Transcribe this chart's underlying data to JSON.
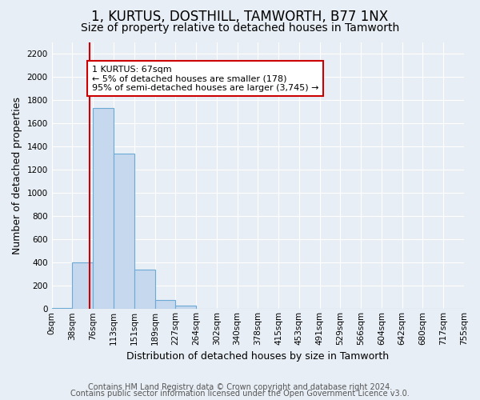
{
  "title": "1, KURTUS, DOSTHILL, TAMWORTH, B77 1NX",
  "subtitle": "Size of property relative to detached houses in Tamworth",
  "xlabel": "Distribution of detached houses by size in Tamworth",
  "ylabel": "Number of detached properties",
  "footer_line1": "Contains HM Land Registry data © Crown copyright and database right 2024.",
  "footer_line2": "Contains public sector information licensed under the Open Government Licence v3.0.",
  "bin_labels": [
    "0sqm",
    "38sqm",
    "76sqm",
    "113sqm",
    "151sqm",
    "189sqm",
    "227sqm",
    "264sqm",
    "302sqm",
    "340sqm",
    "378sqm",
    "415sqm",
    "453sqm",
    "491sqm",
    "529sqm",
    "566sqm",
    "604sqm",
    "642sqm",
    "680sqm",
    "717sqm",
    "755sqm"
  ],
  "bar_values": [
    10,
    400,
    1730,
    1340,
    340,
    75,
    30,
    5,
    0,
    0,
    0,
    0,
    0,
    0,
    0,
    0,
    0,
    0,
    0,
    0
  ],
  "bar_color": "#c5d8ee",
  "bar_edge_color": "#6aaad4",
  "vline_x_index": 1.85,
  "vline_color": "#cc0000",
  "annotation_text": "1 KURTUS: 67sqm\n← 5% of detached houses are smaller (178)\n95% of semi-detached houses are larger (3,745) →",
  "annotation_box_color": "#ffffff",
  "annotation_box_edge_color": "#cc0000",
  "ylim": [
    0,
    2300
  ],
  "yticks": [
    0,
    200,
    400,
    600,
    800,
    1000,
    1200,
    1400,
    1600,
    1800,
    2000,
    2200
  ],
  "background_color": "#e8eef5",
  "plot_background_color": "#e8eef5",
  "grid_color": "#ffffff",
  "title_fontsize": 12,
  "subtitle_fontsize": 10,
  "tick_fontsize": 7.5,
  "label_fontsize": 9,
  "footer_fontsize": 7
}
